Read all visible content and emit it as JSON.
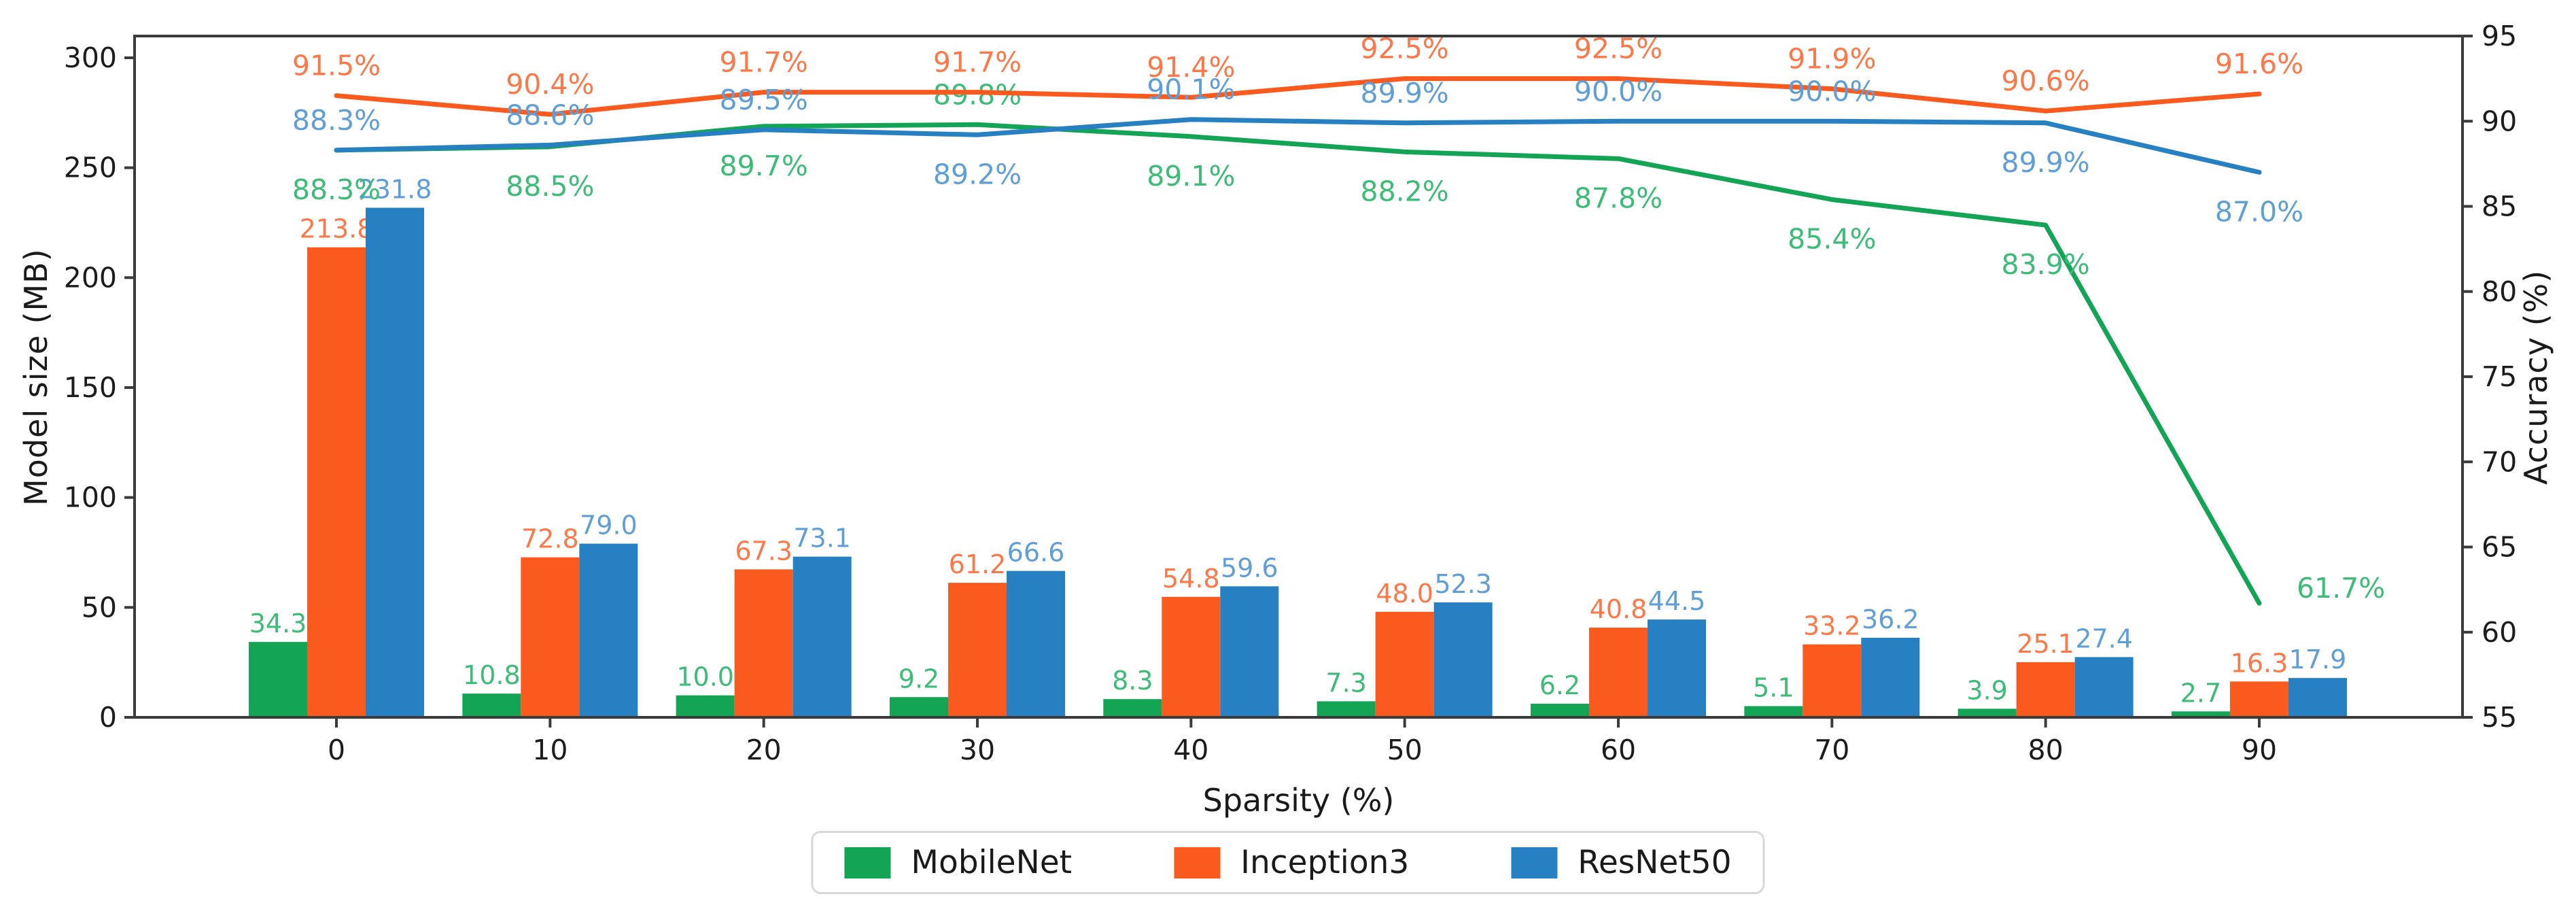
{
  "chart_data": {
    "type": "bar+line",
    "title": "",
    "xlabel": "Sparsity (%)",
    "ylabel_left": "Model size (MB)",
    "ylabel_right": "Accuracy (%)",
    "categories": [
      0,
      10,
      20,
      30,
      40,
      50,
      60,
      70,
      80,
      90
    ],
    "left_axis": {
      "label": "Model size (MB)",
      "min": 0,
      "max": 310,
      "ticks": [
        0,
        50,
        100,
        150,
        200,
        250,
        300
      ]
    },
    "right_axis": {
      "label": "Accuracy (%)",
      "min": 55,
      "max": 95,
      "ticks": [
        55,
        60,
        65,
        70,
        75,
        80,
        85,
        90,
        95
      ]
    },
    "grid": false,
    "legend_position": "bottom-center",
    "series": [
      {
        "name": "MobileNet",
        "color": "#13a456",
        "label_color": "#3dbc78",
        "size_mb": [
          34.3,
          10.8,
          10.0,
          9.2,
          8.3,
          7.3,
          6.2,
          5.1,
          3.9,
          2.7
        ],
        "accuracy_pct": [
          88.3,
          88.5,
          89.7,
          89.8,
          89.1,
          88.2,
          87.8,
          85.4,
          83.9,
          61.7
        ],
        "acc_label_pos": [
          "below",
          "below",
          "below",
          "above",
          "below",
          "below",
          "below",
          "below",
          "below",
          "right"
        ]
      },
      {
        "name": "Inception3",
        "color": "#fb5a1e",
        "label_color": "#fc7848",
        "size_mb": [
          213.8,
          72.8,
          67.3,
          61.2,
          54.8,
          48.0,
          40.8,
          33.2,
          25.1,
          16.3
        ],
        "accuracy_pct": [
          91.5,
          90.4,
          91.7,
          91.7,
          91.4,
          92.5,
          92.5,
          91.9,
          90.6,
          91.6
        ],
        "acc_label_pos": [
          "above",
          "above",
          "above",
          "above",
          "above",
          "above",
          "above",
          "above",
          "above",
          "above"
        ]
      },
      {
        "name": "ResNet50",
        "color": "#2680c2",
        "label_color": "#5f9fd6",
        "size_mb": [
          231.8,
          79.0,
          73.1,
          66.6,
          59.6,
          52.3,
          44.5,
          36.2,
          27.4,
          17.9
        ],
        "accuracy_pct": [
          88.3,
          88.6,
          89.5,
          89.2,
          90.1,
          89.9,
          90.0,
          90.0,
          89.9,
          87.0
        ],
        "acc_label_pos": [
          "above",
          "above",
          "above",
          "below",
          "above",
          "above",
          "above",
          "above",
          "below",
          "below"
        ]
      }
    ]
  }
}
